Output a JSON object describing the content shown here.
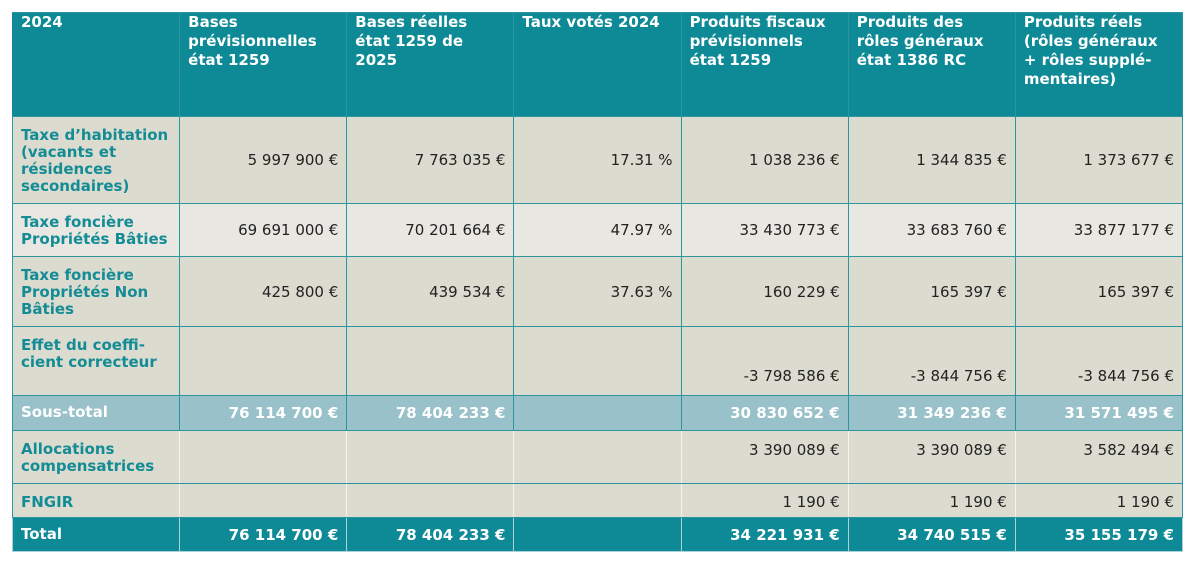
{
  "table": {
    "headers": [
      "2024",
      "Bases prévisionnelles état 1259",
      "Bases réelles état 1259 de 2025",
      "Taux votés 2024",
      "Produits fiscaux prévisionnels état 1259",
      "Produits des rôles généraux état 1386 RC",
      "Produits réels (rôles généraux + rôles supplé-mentaires)"
    ],
    "rows": {
      "taxe_habitation": {
        "label": "Taxe d’habitation (vacants et résidences secondaires)",
        "cells": [
          "5 997 900 €",
          "7 763 035 €",
          "17.31 %",
          "1 038 236 €",
          "1 344 835 €",
          "1 373 677 €"
        ]
      },
      "taxe_fonciere_baties": {
        "label": "Taxe foncière Propriétés Bâties",
        "cells": [
          "69 691 000 €",
          "70 201 664 €",
          "47.97 %",
          "33 430 773 €",
          "33 683 760 €",
          "33 877 177 €"
        ]
      },
      "taxe_fonciere_non_baties": {
        "label": "Taxe foncière Propriétés Non Bâties",
        "cells": [
          "425 800 €",
          "439 534 €",
          "37.63 %",
          "160 229 €",
          "165 397 €",
          "165 397 €"
        ]
      },
      "effet_coefficient": {
        "label": "Effet du coeffi-cient correcteur",
        "cells": [
          "",
          "",
          "",
          "-3 798 586 €",
          "-3 844 756 €",
          "-3 844 756 €"
        ]
      },
      "sous_total": {
        "label": "Sous-total",
        "cells": [
          "76 114 700 €",
          "78 404 233 €",
          "",
          "30 830 652 €",
          "31 349 236 €",
          "31 571 495 €"
        ]
      },
      "allocations": {
        "label": "Allocations compensatrices",
        "cells": [
          "",
          "",
          "",
          "3 390 089 €",
          "3 390 089 €",
          "3 582 494 €"
        ]
      },
      "fngir": {
        "label": "FNGIR",
        "cells": [
          "",
          "",
          "",
          "1 190 €",
          "1 190 €",
          "1 190 €"
        ]
      },
      "total": {
        "label": "Total",
        "cells": [
          "76 114 700 €",
          "78 404 233 €",
          "",
          "34 221 931 €",
          "34 740 515 €",
          "35 155 179 €"
        ]
      }
    }
  },
  "colors": {
    "header_bg": "#0e8a96",
    "body_bg": "#dcdbcf",
    "alt_row_bg": "#e9e7e1",
    "subtotal_bg": "#98c1c9",
    "label_text": "#148c96"
  }
}
